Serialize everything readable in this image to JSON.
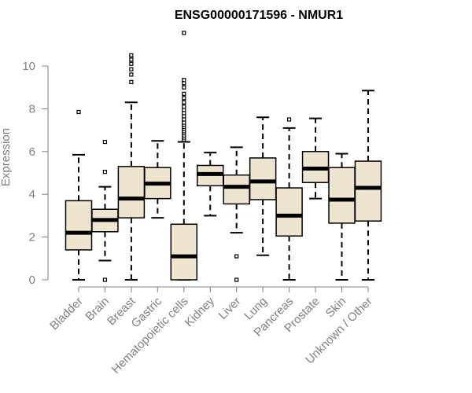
{
  "chart_data": {
    "type": "boxplot",
    "title": "ENSG00000171596 - NMUR1",
    "xlabel": "",
    "ylabel": "Expression",
    "ylim": [
      0,
      11.5
    ],
    "yticks": [
      0,
      2,
      4,
      6,
      8,
      10
    ],
    "colors": {
      "box_fill": "#ede5cf",
      "stroke": "#000000",
      "axis": "#808080"
    },
    "categories": [
      "Bladder",
      "Brain",
      "Breast",
      "Gastric",
      "Hematopoietic cells",
      "Kidney",
      "Liver",
      "Lung",
      "Pancreas",
      "Prostate",
      "Skin",
      "Unknown / Other"
    ],
    "boxes": [
      {
        "name": "Bladder",
        "whisker_low": 0.0,
        "q1": 1.4,
        "median": 2.2,
        "q3": 3.7,
        "whisker_high": 5.85,
        "outliers": [
          7.85
        ]
      },
      {
        "name": "Brain",
        "whisker_low": 0.9,
        "q1": 2.25,
        "median": 2.8,
        "q3": 3.3,
        "whisker_high": 4.35,
        "outliers": [
          0.0,
          5.05,
          6.45
        ]
      },
      {
        "name": "Breast",
        "whisker_low": 0.0,
        "q1": 2.9,
        "median": 3.8,
        "q3": 5.3,
        "whisker_high": 8.3,
        "outliers": [
          9.25,
          9.6,
          9.85,
          10.1,
          10.3,
          10.5
        ]
      },
      {
        "name": "Gastric",
        "whisker_low": 2.9,
        "q1": 3.8,
        "median": 4.5,
        "q3": 5.25,
        "whisker_high": 6.5,
        "outliers": []
      },
      {
        "name": "Hematopoietic cells",
        "whisker_low": 0.0,
        "q1": 0.0,
        "median": 1.1,
        "q3": 2.6,
        "whisker_high": 6.45,
        "outliers": [
          6.55,
          6.65,
          6.75,
          6.85,
          6.95,
          7.05,
          7.15,
          7.25,
          7.35,
          7.5,
          7.65,
          7.8,
          7.95,
          8.1,
          8.3,
          8.5,
          8.7,
          9.0,
          9.2,
          9.35,
          11.55
        ]
      },
      {
        "name": "Kidney",
        "whisker_low": 3.0,
        "q1": 4.4,
        "median": 4.95,
        "q3": 5.35,
        "whisker_high": 5.95,
        "outliers": []
      },
      {
        "name": "Liver",
        "whisker_low": 2.2,
        "q1": 3.55,
        "median": 4.35,
        "q3": 4.9,
        "whisker_high": 6.2,
        "outliers": [
          0.0,
          1.1
        ]
      },
      {
        "name": "Lung",
        "whisker_low": 1.15,
        "q1": 3.75,
        "median": 4.6,
        "q3": 5.7,
        "whisker_high": 7.6,
        "outliers": []
      },
      {
        "name": "Pancreas",
        "whisker_low": 0.0,
        "q1": 2.05,
        "median": 3.0,
        "q3": 4.3,
        "whisker_high": 7.1,
        "outliers": [
          7.5
        ]
      },
      {
        "name": "Prostate",
        "whisker_low": 3.8,
        "q1": 4.55,
        "median": 5.2,
        "q3": 6.0,
        "whisker_high": 7.55,
        "outliers": []
      },
      {
        "name": "Skin",
        "whisker_low": 0.0,
        "q1": 2.65,
        "median": 3.75,
        "q3": 5.25,
        "whisker_high": 5.9,
        "outliers": []
      },
      {
        "name": "Unknown / Other",
        "whisker_low": 0.0,
        "q1": 2.75,
        "median": 4.3,
        "q3": 5.55,
        "whisker_high": 8.85,
        "outliers": []
      }
    ]
  }
}
